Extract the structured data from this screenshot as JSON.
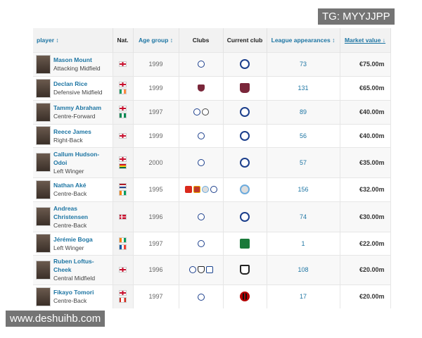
{
  "headers": {
    "player": "player ↕",
    "nat": "Nat.",
    "age": "Age group ↕",
    "clubs": "Clubs",
    "current": "Current club",
    "apps": "League appearances ↕",
    "value": "Market value ↓"
  },
  "rows": [
    {
      "name": "Mason Mount",
      "position": "Attacking Midfield",
      "flags": [
        "eng"
      ],
      "age": "1999",
      "clubs": [
        "chelsea"
      ],
      "current": "chelsea",
      "apps": "73",
      "value": "€75.00m"
    },
    {
      "name": "Declan Rice",
      "position": "Defensive Midfield",
      "flags": [
        "eng",
        "irl"
      ],
      "age": "1999",
      "clubs": [
        "west-ham"
      ],
      "current": "west-ham",
      "apps": "131",
      "value": "€65.00m"
    },
    {
      "name": "Tammy Abraham",
      "position": "Centre-Forward",
      "flags": [
        "eng",
        "nga"
      ],
      "age": "1997",
      "clubs": [
        "chelsea",
        "swansea"
      ],
      "current": "chelsea",
      "apps": "89",
      "value": "€40.00m"
    },
    {
      "name": "Reece James",
      "position": "Right-Back",
      "flags": [
        "eng"
      ],
      "age": "1999",
      "clubs": [
        "chelsea"
      ],
      "current": "chelsea",
      "apps": "56",
      "value": "€40.00m"
    },
    {
      "name": "Callum Hudson-Odoi",
      "position": "Left Winger",
      "flags": [
        "eng",
        "gha"
      ],
      "age": "2000",
      "clubs": [
        "chelsea"
      ],
      "current": "chelsea",
      "apps": "57",
      "value": "€35.00m"
    },
    {
      "name": "Nathan Aké",
      "position": "Centre-Back",
      "flags": [
        "ned",
        "civ"
      ],
      "age": "1995",
      "clubs": [
        "bournemouth",
        "watford",
        "man-city",
        "chelsea"
      ],
      "current": "man-city",
      "apps": "156",
      "value": "€32.00m"
    },
    {
      "name": "Andreas Christensen",
      "position": "Centre-Back",
      "flags": [
        "den"
      ],
      "age": "1996",
      "clubs": [
        "chelsea"
      ],
      "current": "chelsea",
      "apps": "74",
      "value": "€30.00m"
    },
    {
      "name": "Jérémie Boga",
      "position": "Left Winger",
      "flags": [
        "civ",
        "fra"
      ],
      "age": "1997",
      "clubs": [
        "chelsea"
      ],
      "current": "sassuolo",
      "apps": "1",
      "value": "€22.00m"
    },
    {
      "name": "Ruben Loftus-Cheek",
      "position": "Central Midfield",
      "flags": [
        "eng"
      ],
      "age": "1996",
      "clubs": [
        "chelsea",
        "fulham",
        "crystal-palace"
      ],
      "current": "fulham",
      "apps": "108",
      "value": "€20.00m"
    },
    {
      "name": "Fikayo Tomori",
      "position": "Centre-Back",
      "flags": [
        "eng",
        "can"
      ],
      "age": "1997",
      "clubs": [
        "chelsea"
      ],
      "current": "ac-milan",
      "apps": "17",
      "value": "€20.00m"
    }
  ],
  "overlay_top": "TG: MYYJJPP",
  "overlay_bottom": "www.deshuihb.com"
}
